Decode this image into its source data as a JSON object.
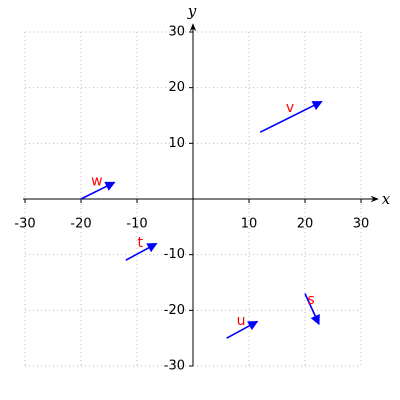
{
  "chart_data": {
    "type": "vector",
    "x_label": "x",
    "y_label": "y",
    "xlim": [
      -30,
      30
    ],
    "ylim": [
      -30,
      30
    ],
    "xticks": [
      -30,
      -20,
      -10,
      10,
      20,
      30
    ],
    "yticks": [
      -30,
      -20,
      -10,
      10,
      20,
      30
    ],
    "grid": true,
    "arrow_color": "#0000ff",
    "label_color": "#ff0000",
    "vectors": [
      {
        "name": "v",
        "x0": 12,
        "y0": 12,
        "x1": 23,
        "y1": 17.5
      },
      {
        "name": "w",
        "x0": -20,
        "y0": 0,
        "x1": -14,
        "y1": 3
      },
      {
        "name": "t",
        "x0": -12,
        "y0": -11,
        "x1": -6.5,
        "y1": -8
      },
      {
        "name": "u",
        "x0": 6,
        "y0": -25,
        "x1": 11.5,
        "y1": -22
      },
      {
        "name": "s",
        "x0": 20,
        "y0": -17,
        "x1": 22.5,
        "y1": -22.5
      }
    ]
  }
}
